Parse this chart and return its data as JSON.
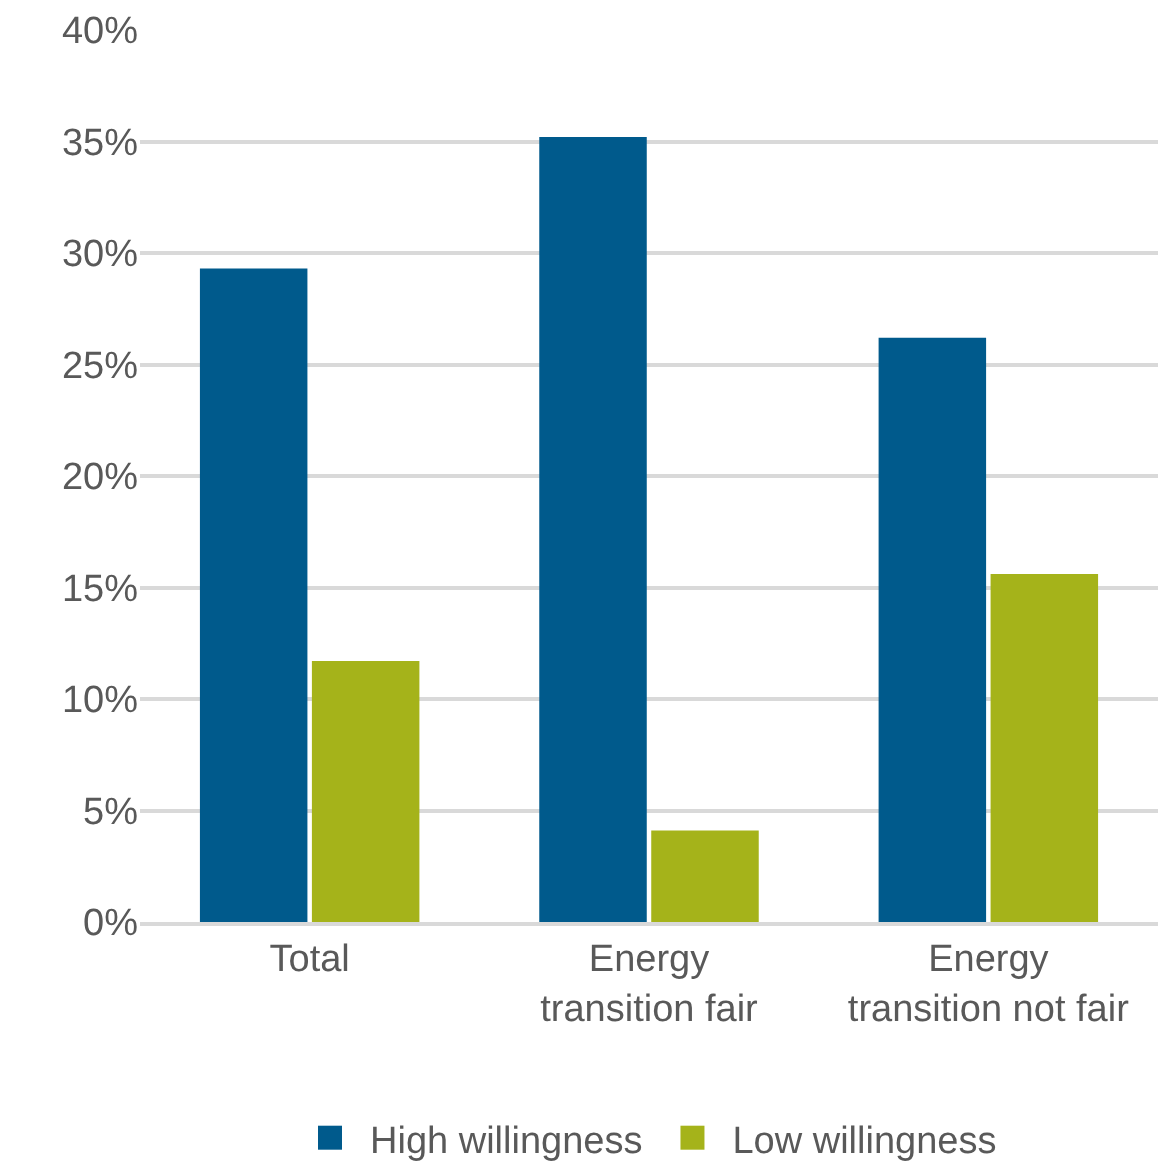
{
  "chart_data": {
    "type": "bar",
    "categories": [
      "Total",
      "Energy\ntransition fair",
      "Energy\ntransition not fair"
    ],
    "series": [
      {
        "name": "High willingness",
        "color": "#005a8c",
        "values": [
          29.3,
          35.2,
          26.2
        ]
      },
      {
        "name": "Low willingness",
        "color": "#a5b31a",
        "values": [
          11.7,
          4.1,
          15.6
        ]
      }
    ],
    "ylim": [
      0,
      40
    ],
    "yticks": [
      {
        "value": 0,
        "label": "0%"
      },
      {
        "value": 5,
        "label": "5%"
      },
      {
        "value": 10,
        "label": "10%"
      },
      {
        "value": 15,
        "label": "15%"
      },
      {
        "value": 20,
        "label": "20%"
      },
      {
        "value": 25,
        "label": "25%"
      },
      {
        "value": 30,
        "label": "30%"
      },
      {
        "value": 35,
        "label": "35%"
      },
      {
        "value": 40,
        "label": "40%"
      }
    ],
    "grid": "y",
    "legend": "bottom"
  }
}
